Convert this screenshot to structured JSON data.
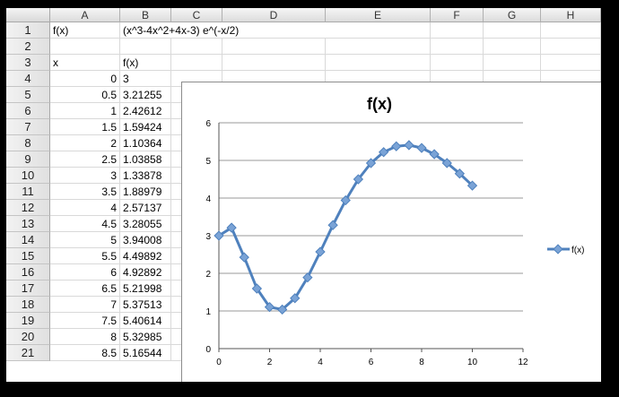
{
  "columns": [
    "A",
    "B",
    "C",
    "D",
    "E",
    "F",
    "G",
    "H"
  ],
  "rows": [
    "1",
    "2",
    "3",
    "4",
    "5",
    "6",
    "7",
    "8",
    "9",
    "10",
    "11",
    "12",
    "13",
    "14",
    "15",
    "16",
    "17",
    "18",
    "19",
    "20",
    "21"
  ],
  "cells": {
    "a1": "f(x)",
    "b1": "(x^3-4x^2+4x-3) e^(-x/2)",
    "a3": "x",
    "b3": "f(x)",
    "table": [
      [
        "0",
        "3"
      ],
      [
        "0.5",
        "3.21255"
      ],
      [
        "1",
        "2.42612"
      ],
      [
        "1.5",
        "1.59424"
      ],
      [
        "2",
        "1.10364"
      ],
      [
        "2.5",
        "1.03858"
      ],
      [
        "3",
        "1.33878"
      ],
      [
        "3.5",
        "1.88979"
      ],
      [
        "4",
        "2.57137"
      ],
      [
        "4.5",
        "3.28055"
      ],
      [
        "5",
        "3.94008"
      ],
      [
        "5.5",
        "4.49892"
      ],
      [
        "6",
        "4.92892"
      ],
      [
        "6.5",
        "5.21998"
      ],
      [
        "7",
        "5.37513"
      ],
      [
        "7.5",
        "5.40614"
      ],
      [
        "8",
        "5.32985"
      ],
      [
        "8.5",
        "5.16544"
      ]
    ]
  },
  "chart_data": {
    "type": "line",
    "title": "f(x)",
    "xlim": [
      0,
      12
    ],
    "ylim": [
      0,
      6
    ],
    "xticks": [
      "0",
      "2",
      "4",
      "6",
      "8",
      "10",
      "12"
    ],
    "yticks": [
      "0",
      "1",
      "2",
      "3",
      "4",
      "5",
      "6"
    ],
    "grid": "horizontal",
    "legend": "right",
    "color": "#4f81bd",
    "series": [
      {
        "name": "f(x)",
        "x": [
          0,
          0.5,
          1,
          1.5,
          2,
          2.5,
          3,
          3.5,
          4,
          4.5,
          5,
          5.5,
          6,
          6.5,
          7,
          7.5,
          8,
          8.5,
          9,
          9.5,
          10
        ],
        "y": [
          3,
          3.21255,
          2.42612,
          1.59424,
          1.10364,
          1.03858,
          1.33878,
          1.88979,
          2.57137,
          3.28055,
          3.94008,
          4.49892,
          4.92892,
          5.21998,
          5.37513,
          5.40614,
          5.32985,
          5.16544,
          4.93,
          4.65,
          4.33
        ]
      }
    ]
  }
}
